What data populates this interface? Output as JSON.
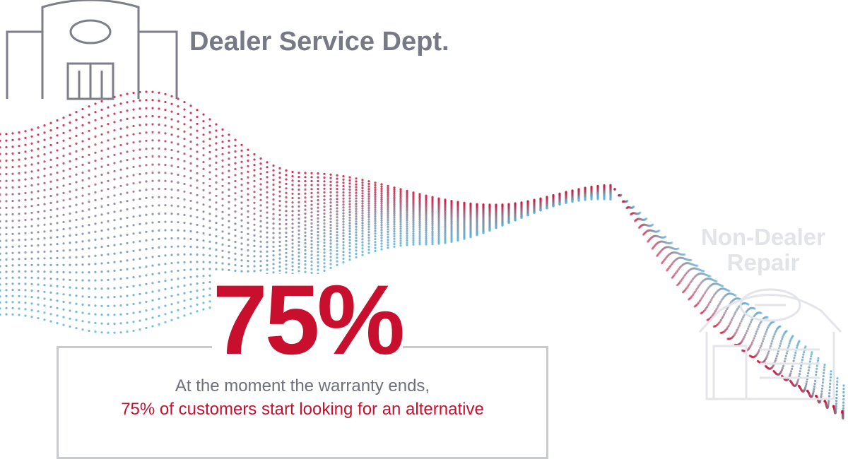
{
  "header": {
    "title": "Dealer Service Dept."
  },
  "alternative": {
    "label_lines": [
      "Non-Dealer",
      "Repair"
    ]
  },
  "stat": {
    "value": "75%",
    "line1": "At the moment the warranty ends,",
    "line2": "75% of customers start looking for an alternative"
  }
}
